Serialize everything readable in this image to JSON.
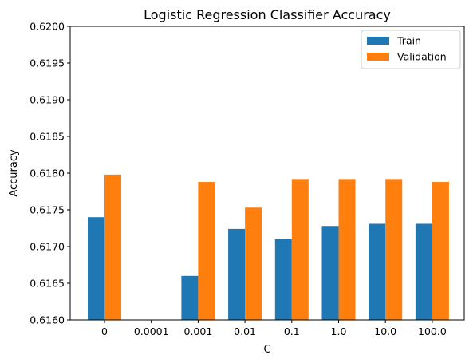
{
  "chart_data": {
    "type": "bar",
    "title": "Logistic Regression Classifier Accuracy",
    "xlabel": "C",
    "ylabel": "Accuracy",
    "categories": [
      "0",
      "0.0001",
      "0.001",
      "0.01",
      "0.1",
      "1.0",
      "10.0",
      "100.0"
    ],
    "series": [
      {
        "name": "Train",
        "color": "#1f77b4",
        "values": [
          0.6174,
          0.616,
          0.6166,
          0.61724,
          0.6171,
          0.61728,
          0.61731,
          0.61731
        ]
      },
      {
        "name": "Validation",
        "color": "#ff7f0e",
        "values": [
          0.61798,
          0.616,
          0.61788,
          0.61753,
          0.61792,
          0.61792,
          0.61792,
          0.61788
        ]
      }
    ],
    "ylim": [
      0.616,
      0.62
    ],
    "yticks": [
      "0.6160",
      "0.6165",
      "0.6170",
      "0.6175",
      "0.6180",
      "0.6185",
      "0.6190",
      "0.6195",
      "0.6200"
    ],
    "grid": false,
    "legend_position": "top-right"
  }
}
